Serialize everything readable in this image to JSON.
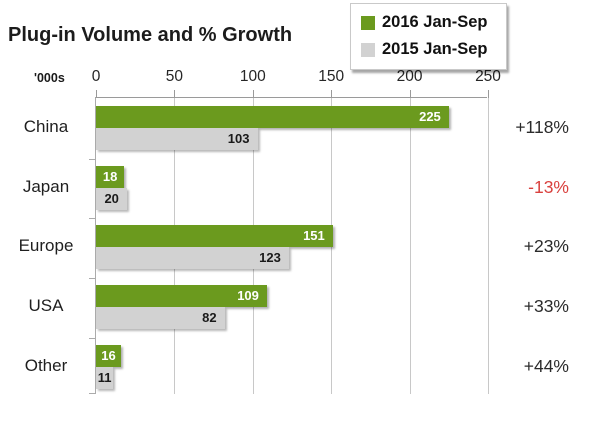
{
  "chart_data": {
    "type": "bar",
    "orientation": "horizontal",
    "title": "Plug-in Volume and % Growth",
    "units_label": "'000s",
    "categories": [
      "China",
      "Japan",
      "Europe",
      "USA",
      "Other"
    ],
    "series": [
      {
        "name": "2016 Jan-Sep",
        "color": "#6b9a1e",
        "values": [
          225,
          18,
          151,
          109,
          16
        ]
      },
      {
        "name": "2015 Jan-Sep",
        "color": "#d2d2d2",
        "values": [
          103,
          20,
          123,
          82,
          11
        ]
      }
    ],
    "growth_labels": [
      "+118%",
      "-13%",
      "+23%",
      "+33%",
      "+44%"
    ],
    "growth_colors": [
      "#2b2b2b",
      "#d9413e",
      "#2b2b2b",
      "#2b2b2b",
      "#2b2b2b"
    ],
    "x_ticks": [
      0,
      50,
      100,
      150,
      200,
      250
    ],
    "xlim": [
      0,
      250
    ],
    "grid": true,
    "legend_position": "top-right",
    "value_label_color_on_2016": "#ffffff",
    "value_label_color_on_2015": "#1a1a1a"
  }
}
